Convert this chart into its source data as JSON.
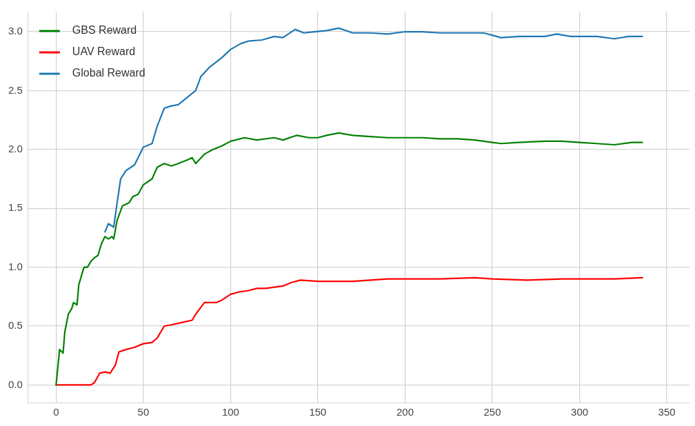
{
  "chart_data": {
    "type": "line",
    "xlim": [
      -16,
      363
    ],
    "ylim": [
      -0.15,
      3.17
    ],
    "xticks": [
      0,
      50,
      100,
      150,
      200,
      250,
      300,
      350
    ],
    "yticks": [
      {
        "value": 0,
        "label": "0.0"
      },
      0.5,
      {
        "value": 1,
        "label": "1.0"
      },
      1.5,
      {
        "value": 2,
        "label": "2.0"
      },
      2.5,
      {
        "value": 3,
        "label": "3.0"
      }
    ],
    "grid": true,
    "legend": "top left",
    "line_style": "solid",
    "marker": "none",
    "series": [
      {
        "name": "GBS Reward",
        "color": "#008000",
        "x": [
          0,
          2,
          4,
          5,
          7,
          9,
          10,
          12,
          13,
          15,
          16,
          18,
          20,
          22,
          24,
          26,
          28,
          30,
          32,
          33,
          35,
          38,
          42,
          44,
          47,
          50,
          55,
          58,
          62,
          66,
          70,
          75,
          78,
          80,
          85,
          90,
          95,
          100,
          108,
          115,
          125,
          130,
          138,
          145,
          150,
          155,
          162,
          170,
          180,
          190,
          200,
          210,
          220,
          230,
          240,
          250,
          255,
          265,
          280,
          290,
          300,
          310,
          320,
          330,
          336
        ],
        "values": [
          0,
          0.3,
          0.27,
          0.45,
          0.6,
          0.65,
          0.7,
          0.68,
          0.85,
          0.95,
          1.0,
          1.0,
          1.05,
          1.08,
          1.1,
          1.2,
          1.26,
          1.24,
          1.26,
          1.24,
          1.4,
          1.52,
          1.55,
          1.6,
          1.62,
          1.7,
          1.75,
          1.85,
          1.88,
          1.86,
          1.88,
          1.91,
          1.93,
          1.88,
          1.96,
          2.0,
          2.03,
          2.07,
          2.1,
          2.08,
          2.1,
          2.08,
          2.12,
          2.1,
          2.1,
          2.12,
          2.14,
          2.12,
          2.11,
          2.1,
          2.1,
          2.1,
          2.09,
          2.09,
          2.08,
          2.06,
          2.05,
          2.06,
          2.07,
          2.07,
          2.06,
          2.05,
          2.04,
          2.06,
          2.06
        ]
      },
      {
        "name": "UAV Reward",
        "color": "#ff0000",
        "x": [
          0,
          20,
          22,
          25,
          28,
          31,
          34,
          36,
          40,
          45,
          50,
          55,
          58,
          62,
          66,
          72,
          78,
          80,
          85,
          92,
          95,
          100,
          105,
          110,
          115,
          120,
          130,
          135,
          140,
          150,
          160,
          170,
          180,
          190,
          200,
          220,
          240,
          250,
          270,
          290,
          300,
          320,
          336
        ],
        "values": [
          0,
          0,
          0.02,
          0.1,
          0.11,
          0.1,
          0.17,
          0.28,
          0.3,
          0.32,
          0.35,
          0.36,
          0.4,
          0.5,
          0.51,
          0.53,
          0.55,
          0.6,
          0.7,
          0.7,
          0.72,
          0.77,
          0.79,
          0.8,
          0.82,
          0.82,
          0.84,
          0.87,
          0.89,
          0.88,
          0.88,
          0.88,
          0.89,
          0.9,
          0.9,
          0.9,
          0.91,
          0.9,
          0.89,
          0.9,
          0.9,
          0.9,
          0.91
        ]
      },
      {
        "name": "Global Reward",
        "color": "#1f77b4",
        "x": [
          28,
          30,
          33,
          35,
          37,
          40,
          45,
          50,
          55,
          58,
          62,
          66,
          70,
          75,
          80,
          83,
          88,
          95,
          100,
          106,
          110,
          118,
          125,
          130,
          137,
          142,
          148,
          155,
          162,
          170,
          180,
          190,
          200,
          210,
          220,
          230,
          245,
          250,
          255,
          265,
          280,
          287,
          295,
          310,
          320,
          328,
          336
        ],
        "values": [
          1.3,
          1.37,
          1.34,
          1.55,
          1.75,
          1.82,
          1.87,
          2.02,
          2.05,
          2.2,
          2.35,
          2.37,
          2.38,
          2.44,
          2.5,
          2.62,
          2.7,
          2.78,
          2.85,
          2.9,
          2.92,
          2.93,
          2.96,
          2.95,
          3.02,
          2.99,
          3.0,
          3.01,
          3.03,
          2.99,
          2.99,
          2.98,
          3.0,
          3.0,
          2.99,
          2.99,
          2.99,
          2.97,
          2.95,
          2.96,
          2.96,
          2.98,
          2.96,
          2.96,
          2.94,
          2.96,
          2.96
        ]
      }
    ]
  }
}
